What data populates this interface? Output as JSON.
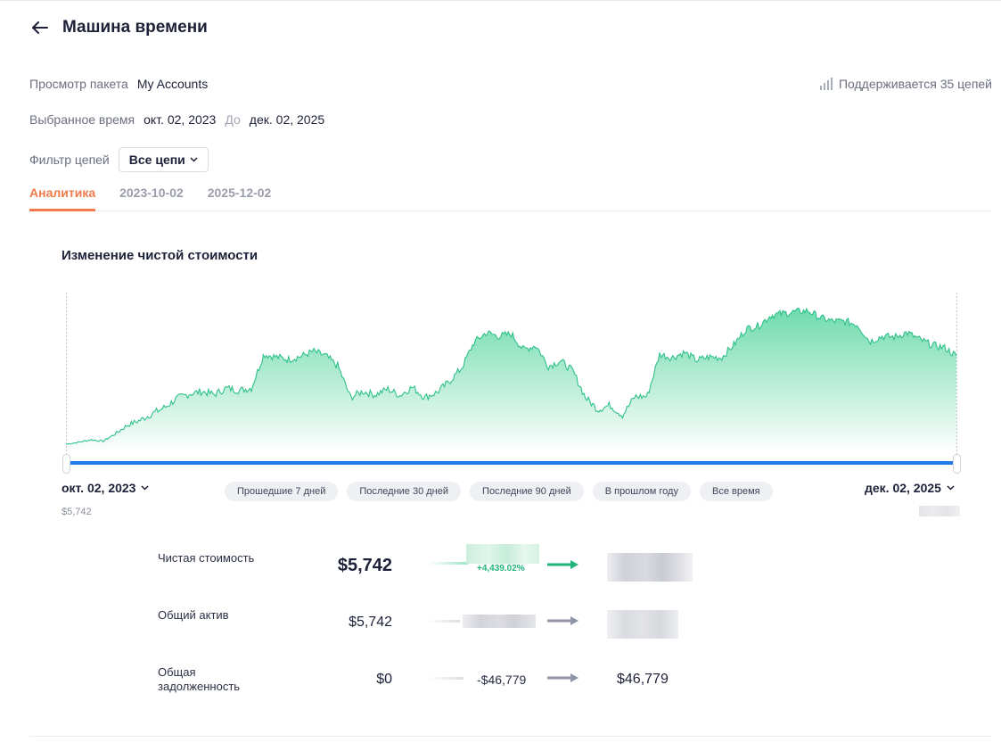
{
  "header": {
    "title": "Машина времени"
  },
  "bundle": {
    "label": "Просмотр пакета",
    "value": "My Accounts"
  },
  "supported_chains": "Поддерживается 35 цепей",
  "time": {
    "label": "Выбранное время",
    "from": "окт. 02, 2023",
    "to_word": "До",
    "to": "дек. 02, 2025"
  },
  "chain_filter": {
    "label": "Фильтр цепей",
    "value": "Все цепи"
  },
  "tabs": [
    {
      "label": "Аналитика",
      "active": true
    },
    {
      "label": "2023-10-02",
      "active": false
    },
    {
      "label": "2025-12-02",
      "active": false
    }
  ],
  "chart": {
    "title": "Изменение чистой стоимости",
    "start_date": "окт. 02, 2023",
    "end_date": "дек. 02, 2025",
    "start_value": "$5,742",
    "presets": [
      "Прошедшие 7 дней",
      "Последние 30 дней",
      "Последние 90 дней",
      "В прошлом году",
      "Все время"
    ]
  },
  "chart_data": {
    "type": "area",
    "x_range": [
      "2023-10-02",
      "2025-12-02"
    ],
    "start_value": 5742,
    "shape": [
      0.0,
      0.012,
      0.03,
      0.02,
      0.07,
      0.128,
      0.16,
      0.205,
      0.246,
      0.306,
      0.337,
      0.352,
      0.332,
      0.375,
      0.358,
      0.375,
      0.6,
      0.582,
      0.566,
      0.586,
      0.62,
      0.59,
      0.52,
      0.312,
      0.352,
      0.33,
      0.368,
      0.326,
      0.381,
      0.312,
      0.346,
      0.418,
      0.51,
      0.68,
      0.745,
      0.72,
      0.736,
      0.63,
      0.66,
      0.52,
      0.556,
      0.487,
      0.312,
      0.231,
      0.26,
      0.192,
      0.318,
      0.318,
      0.6,
      0.577,
      0.612,
      0.56,
      0.582,
      0.577,
      0.663,
      0.77,
      0.79,
      0.86,
      0.873,
      0.883,
      0.89,
      0.843,
      0.82,
      0.82,
      0.797,
      0.685,
      0.72,
      0.715,
      0.745,
      0.7,
      0.663,
      0.645,
      0.59
    ],
    "color": "#2fc08a",
    "fill_top": "#5fd7a4",
    "grid": false
  },
  "metrics": [
    {
      "label": "Чистая стоимость",
      "start": "$5,742",
      "delta": "",
      "pct": "+4,439.02%",
      "end": ""
    },
    {
      "label": "Общий актив",
      "start": "$5,742",
      "delta": "",
      "pct": "",
      "end": ""
    },
    {
      "label": "Общая задолженность",
      "start": "$0",
      "delta": "-$46,779",
      "pct": "",
      "end": "$46,779"
    }
  ],
  "colors": {
    "accent": "#f07a4b",
    "slider": "#1f78e8",
    "positive": "#21b57c",
    "neutral_arrow": "#8f95a6"
  }
}
